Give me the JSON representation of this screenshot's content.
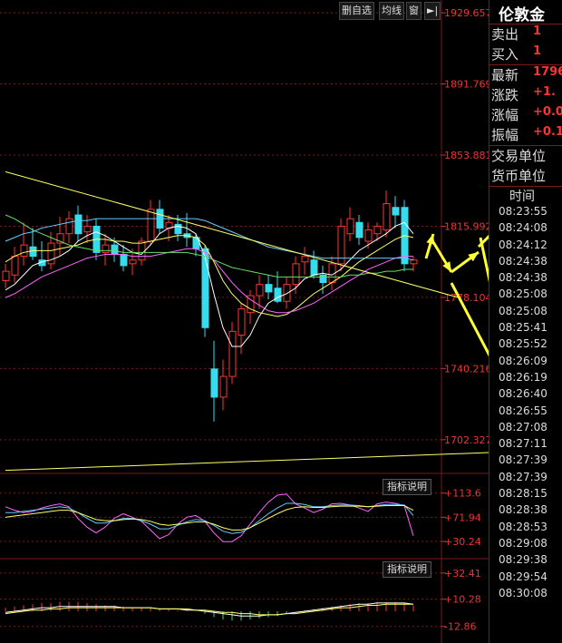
{
  "toolbar": {
    "btn1": "删自选",
    "btn2": "均线",
    "btn3": "窗",
    "btn4": "►|"
  },
  "quote_panel": {
    "title": "伦敦金",
    "rows": [
      {
        "label": "卖出",
        "value": "1"
      },
      {
        "label": "买入",
        "value": "1"
      },
      {
        "label": "最新",
        "value": "1796."
      },
      {
        "label": "涨跌",
        "value": "+1."
      },
      {
        "label": "涨幅",
        "value": "+0.0"
      },
      {
        "label": "振幅",
        "value": "+0.1"
      }
    ],
    "unit_rows": [
      "交易单位",
      "货币单位"
    ],
    "time_header": "时间",
    "times": [
      "08:23:55",
      "08:24:08",
      "08:24:12",
      "08:24:38",
      "08:24:38",
      "08:25:08",
      "08:25:08",
      "08:25:41",
      "08:25:52",
      "08:26:09",
      "08:26:19",
      "08:26:40",
      "08:26:55",
      "08:27:08",
      "08:27:11",
      "08:27:39",
      "08:27:39",
      "08:28:15",
      "08:28:38",
      "08:28:53",
      "08:29:08",
      "08:29:38",
      "08:29:54",
      "08:30:08"
    ]
  },
  "indicator_labels": {
    "mid": "指标说明",
    "bottom": "指标说明"
  },
  "chart_data": [
    {
      "type": "candlestick",
      "title": "伦敦金",
      "ylim": [
        1695,
        1935
      ],
      "y_ticks": [
        "1929.657",
        "1891.769",
        "1853.881",
        "1815.992",
        "1778.104",
        "1740.216",
        "1702.327"
      ],
      "grid": true,
      "candles": [
        {
          "o": 1787,
          "h": 1796,
          "l": 1783,
          "c": 1792
        },
        {
          "o": 1790,
          "h": 1805,
          "l": 1786,
          "c": 1800
        },
        {
          "o": 1800,
          "h": 1818,
          "l": 1795,
          "c": 1806
        },
        {
          "o": 1805,
          "h": 1815,
          "l": 1798,
          "c": 1800
        },
        {
          "o": 1798,
          "h": 1808,
          "l": 1792,
          "c": 1795
        },
        {
          "o": 1796,
          "h": 1813,
          "l": 1793,
          "c": 1807
        },
        {
          "o": 1807,
          "h": 1821,
          "l": 1800,
          "c": 1812
        },
        {
          "o": 1812,
          "h": 1824,
          "l": 1807,
          "c": 1820
        },
        {
          "o": 1822,
          "h": 1827,
          "l": 1808,
          "c": 1812
        },
        {
          "o": 1813,
          "h": 1822,
          "l": 1807,
          "c": 1816
        },
        {
          "o": 1816,
          "h": 1820,
          "l": 1798,
          "c": 1802
        },
        {
          "o": 1802,
          "h": 1812,
          "l": 1795,
          "c": 1806
        },
        {
          "o": 1806,
          "h": 1810,
          "l": 1797,
          "c": 1801
        },
        {
          "o": 1801,
          "h": 1806,
          "l": 1792,
          "c": 1795
        },
        {
          "o": 1796,
          "h": 1804,
          "l": 1790,
          "c": 1798
        },
        {
          "o": 1798,
          "h": 1810,
          "l": 1795,
          "c": 1808
        },
        {
          "o": 1808,
          "h": 1830,
          "l": 1806,
          "c": 1825
        },
        {
          "o": 1825,
          "h": 1830,
          "l": 1812,
          "c": 1815
        },
        {
          "o": 1815,
          "h": 1822,
          "l": 1808,
          "c": 1818
        },
        {
          "o": 1817,
          "h": 1822,
          "l": 1808,
          "c": 1812
        },
        {
          "o": 1812,
          "h": 1823,
          "l": 1805,
          "c": 1810
        },
        {
          "o": 1810,
          "h": 1812,
          "l": 1800,
          "c": 1804
        },
        {
          "o": 1804,
          "h": 1806,
          "l": 1757,
          "c": 1762
        },
        {
          "o": 1740,
          "h": 1755,
          "l": 1712,
          "c": 1725
        },
        {
          "o": 1725,
          "h": 1745,
          "l": 1718,
          "c": 1736
        },
        {
          "o": 1736,
          "h": 1765,
          "l": 1732,
          "c": 1760
        },
        {
          "o": 1758,
          "h": 1775,
          "l": 1748,
          "c": 1772
        },
        {
          "o": 1770,
          "h": 1782,
          "l": 1764,
          "c": 1779
        },
        {
          "o": 1779,
          "h": 1790,
          "l": 1772,
          "c": 1785
        },
        {
          "o": 1785,
          "h": 1790,
          "l": 1777,
          "c": 1781
        },
        {
          "o": 1783,
          "h": 1792,
          "l": 1775,
          "c": 1776
        },
        {
          "o": 1776,
          "h": 1789,
          "l": 1772,
          "c": 1785
        },
        {
          "o": 1785,
          "h": 1800,
          "l": 1780,
          "c": 1796
        },
        {
          "o": 1797,
          "h": 1805,
          "l": 1790,
          "c": 1800
        },
        {
          "o": 1798,
          "h": 1803,
          "l": 1788,
          "c": 1790
        },
        {
          "o": 1790,
          "h": 1795,
          "l": 1780,
          "c": 1786
        },
        {
          "o": 1786,
          "h": 1800,
          "l": 1782,
          "c": 1796
        },
        {
          "o": 1796,
          "h": 1820,
          "l": 1792,
          "c": 1816
        },
        {
          "o": 1812,
          "h": 1826,
          "l": 1808,
          "c": 1820
        },
        {
          "o": 1818,
          "h": 1822,
          "l": 1806,
          "c": 1810
        },
        {
          "o": 1808,
          "h": 1818,
          "l": 1804,
          "c": 1814
        },
        {
          "o": 1812,
          "h": 1818,
          "l": 1808,
          "c": 1816
        },
        {
          "o": 1814,
          "h": 1835,
          "l": 1810,
          "c": 1828
        },
        {
          "o": 1826,
          "h": 1832,
          "l": 1815,
          "c": 1822
        },
        {
          "o": 1826,
          "h": 1830,
          "l": 1792,
          "c": 1796
        },
        {
          "o": 1796,
          "h": 1800,
          "l": 1792,
          "c": 1798
        }
      ],
      "series": [
        {
          "color": "#ffffff",
          "values": [
            1782,
            1785,
            1790,
            1795,
            1797,
            1798,
            1800,
            1803,
            1808,
            1811,
            1813,
            1811,
            1808,
            1805,
            1802,
            1801,
            1806,
            1812,
            1815,
            1816,
            1815,
            1812,
            1800,
            1780,
            1762,
            1752,
            1752,
            1758,
            1768,
            1775,
            1778,
            1780,
            1783,
            1788,
            1790,
            1791,
            1790,
            1793,
            1798,
            1803,
            1806,
            1809,
            1812,
            1816,
            1818,
            1812
          ]
        },
        {
          "color": "#ffff66",
          "values": [
            1797,
            1800,
            1802,
            1803,
            1803,
            1803,
            1804,
            1805,
            1806,
            1808,
            1809,
            1809,
            1808,
            1808,
            1807,
            1807,
            1808,
            1809,
            1810,
            1811,
            1811,
            1810,
            1806,
            1797,
            1787,
            1780,
            1775,
            1772,
            1770,
            1769,
            1768,
            1769,
            1772,
            1776,
            1780,
            1783,
            1786,
            1789,
            1793,
            1797,
            1800,
            1803,
            1806,
            1809,
            1811,
            1810
          ]
        },
        {
          "color": "#ff66ff",
          "values": [
            1778,
            1780,
            1783,
            1786,
            1789,
            1791,
            1793,
            1795,
            1797,
            1799,
            1800,
            1801,
            1801,
            1801,
            1800,
            1800,
            1800,
            1801,
            1802,
            1803,
            1804,
            1804,
            1802,
            1798,
            1792,
            1786,
            1781,
            1777,
            1774,
            1771,
            1770,
            1770,
            1771,
            1773,
            1775,
            1778,
            1781,
            1784,
            1787,
            1790,
            1793,
            1795,
            1797,
            1799,
            1800,
            1800
          ]
        },
        {
          "color": "#66dd66",
          "values": [
            1822,
            1820,
            1817,
            1814,
            1812,
            1810,
            1808,
            1806,
            1805,
            1804,
            1803,
            1803,
            1803,
            1802,
            1802,
            1802,
            1802,
            1802,
            1802,
            1802,
            1802,
            1801,
            1800,
            1798,
            1796,
            1794,
            1793,
            1792,
            1791,
            1790,
            1789,
            1789,
            1789,
            1789,
            1789,
            1789,
            1789,
            1789,
            1790,
            1790,
            1791,
            1791,
            1792,
            1792,
            1793,
            1793
          ]
        },
        {
          "color": "#66ccff",
          "values": [
            1808,
            1810,
            1812,
            1813,
            1815,
            1816,
            1817,
            1818,
            1819,
            1819,
            1820,
            1820,
            1820,
            1820,
            1820,
            1820,
            1820,
            1820,
            1820,
            1820,
            1820,
            1820,
            1819,
            1817,
            1815,
            1813,
            1811,
            1809,
            1807,
            1805,
            1804,
            1803,
            1802,
            1801,
            1800,
            1799,
            1799,
            1799,
            1799,
            1799,
            1799,
            1799,
            1799,
            1799,
            1799,
            1798
          ]
        }
      ],
      "trendlines": [
        {
          "color": "#ffff66",
          "from": [
            0,
            1845
          ],
          "to": [
            50,
            1778
          ]
        },
        {
          "color": "#ffff66",
          "from": [
            0,
            1686
          ],
          "to": [
            62,
            1697
          ]
        }
      ],
      "annotations": "yellow arrows drawn near the last candles"
    },
    {
      "type": "line",
      "ylim": [
        10,
        135
      ],
      "y_ticks": [
        "+113.6",
        "+71.94",
        "+30.24"
      ],
      "series": [
        {
          "color": "#ff66ff",
          "values": [
            90,
            84,
            80,
            82,
            88,
            92,
            95,
            90,
            70,
            55,
            45,
            55,
            70,
            78,
            72,
            65,
            50,
            35,
            42,
            60,
            72,
            75,
            65,
            45,
            30,
            30,
            40,
            60,
            80,
            98,
            110,
            112,
            95,
            88,
            80,
            86,
            95,
            96,
            93,
            88,
            82,
            95,
            98,
            96,
            92,
            40
          ]
        },
        {
          "color": "#66ccff",
          "values": [
            80,
            80,
            82,
            84,
            86,
            88,
            90,
            88,
            80,
            70,
            62,
            62,
            66,
            70,
            70,
            66,
            60,
            52,
            52,
            58,
            64,
            68,
            66,
            58,
            48,
            44,
            46,
            54,
            66,
            78,
            88,
            96,
            96,
            94,
            90,
            90,
            92,
            93,
            93,
            92,
            90,
            92,
            94,
            94,
            93,
            75
          ]
        },
        {
          "color": "#ffff66",
          "values": [
            72,
            74,
            76,
            78,
            80,
            82,
            84,
            84,
            80,
            74,
            68,
            66,
            66,
            68,
            69,
            68,
            65,
            60,
            58,
            60,
            62,
            64,
            64,
            60,
            54,
            50,
            50,
            54,
            62,
            70,
            78,
            85,
            89,
            90,
            89,
            89,
            90,
            91,
            91,
            91,
            90,
            91,
            92,
            92,
            92,
            84
          ]
        }
      ]
    },
    {
      "type": "bar",
      "ylim": [
        -20,
        40
      ],
      "y_ticks": [
        "+32.41",
        "+10.28",
        "-12.86"
      ],
      "values": [
        3,
        4,
        5,
        6,
        7,
        7,
        8,
        8,
        8,
        7,
        6,
        5,
        5,
        4,
        3,
        3,
        3,
        2,
        2,
        1,
        1,
        0,
        -2,
        -5,
        -7,
        -8,
        -8,
        -7,
        -6,
        -5,
        -4,
        -2,
        0,
        1,
        2,
        3,
        4,
        5,
        6,
        7,
        7,
        8,
        8,
        8,
        7,
        5
      ],
      "series": [
        {
          "color": "#ffffff",
          "values": [
            -1,
            0,
            1,
            2,
            3,
            3,
            4,
            4,
            4,
            4,
            4,
            4,
            4,
            3,
            3,
            3,
            3,
            2,
            2,
            2,
            1,
            1,
            0,
            -1,
            -2,
            -3,
            -4,
            -4,
            -4,
            -3,
            -3,
            -2,
            -1,
            0,
            1,
            2,
            3,
            4,
            5,
            6,
            6,
            7,
            7,
            7,
            7,
            6
          ]
        },
        {
          "color": "#ffff66",
          "values": [
            -2,
            -1,
            0,
            1,
            1,
            2,
            2,
            3,
            3,
            3,
            3,
            3,
            3,
            3,
            3,
            3,
            3,
            2,
            2,
            2,
            2,
            1,
            1,
            0,
            -1,
            -1,
            -2,
            -2,
            -3,
            -3,
            -3,
            -2,
            -2,
            -1,
            0,
            1,
            2,
            3,
            3,
            4,
            5,
            5,
            6,
            6,
            6,
            6
          ]
        }
      ]
    }
  ]
}
